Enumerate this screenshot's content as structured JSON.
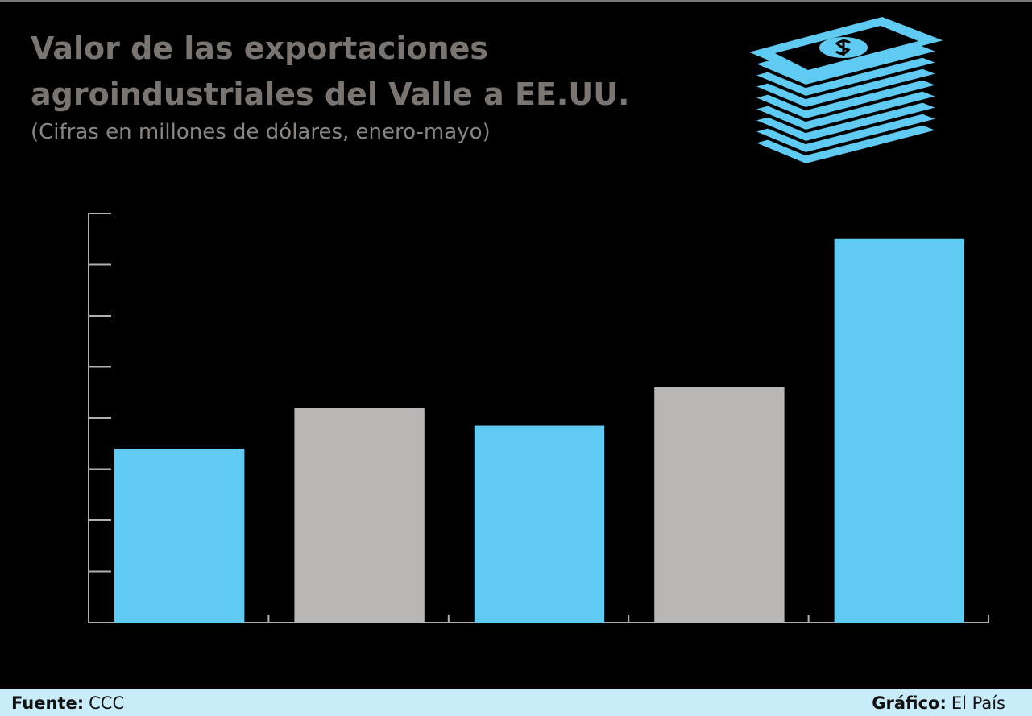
{
  "chart_data": {
    "type": "bar",
    "title": [
      "Valor de las exportaciones",
      "agroindustriales del Valle a EE.UU."
    ],
    "subtitle": "(Cifras en millones de dólares, enero-mayo)",
    "categories": [
      null,
      null,
      null,
      null,
      null
    ],
    "values": [
      3.4,
      4.2,
      3.85,
      4.6,
      7.5
    ],
    "colors": [
      "#5fcbf3",
      "#b8b7b5",
      "#5fcbf3",
      "#b8b7b5",
      "#5fcbf3"
    ],
    "ylim": [
      0,
      8
    ],
    "yticks": [
      0,
      1,
      2,
      3,
      4,
      5,
      6,
      7,
      8
    ],
    "tick_labels": false
  },
  "footer": {
    "source_label": "Fuente:",
    "source": "CCC",
    "credit_label": "Gráfico:",
    "credit": "El País"
  }
}
